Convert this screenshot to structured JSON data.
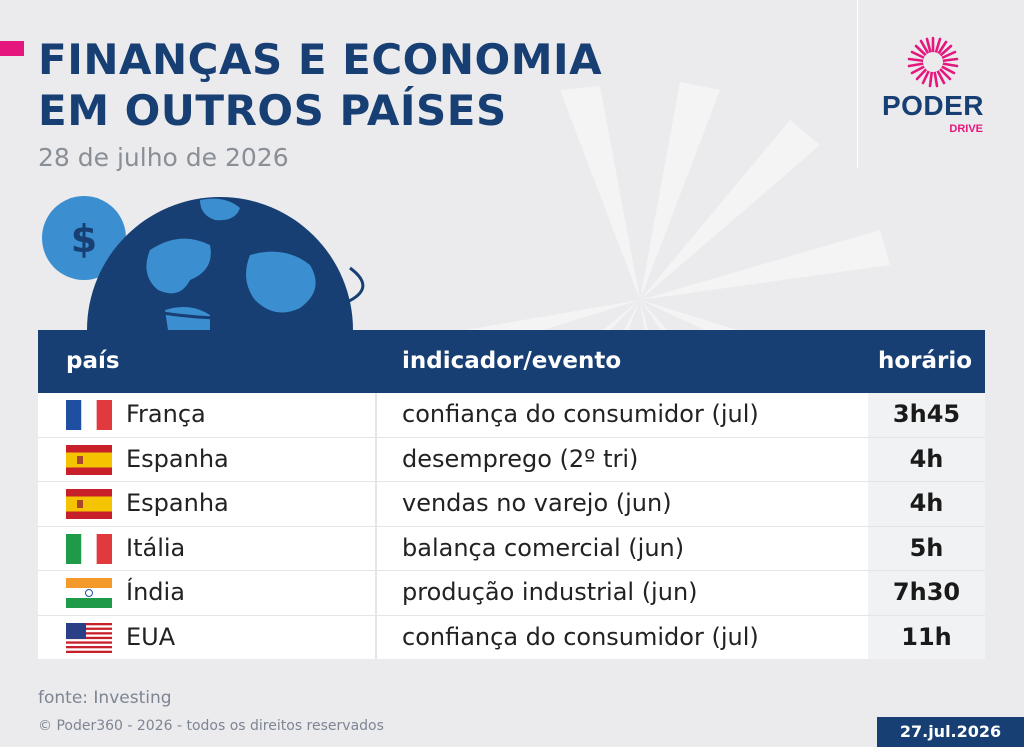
{
  "header": {
    "title_line1": "FINANÇAS E ECONOMIA",
    "title_line2": "EM OUTROS PAÍSES",
    "subtitle": "28 de julho de 2026"
  },
  "logo": {
    "name": "PODER",
    "sub": "DRIVE",
    "burst_icon": "radial-burst-icon"
  },
  "illustration": {
    "icons": [
      "dollar-coin-icon",
      "globe-icon"
    ],
    "dollar_symbol": "$"
  },
  "table": {
    "headers": {
      "country": "país",
      "indicator": "indicador/evento",
      "time": "horário"
    },
    "rows": [
      {
        "flag": "france-flag-icon",
        "country": "França",
        "indicator": "confiança do consumidor (jul)",
        "time": "3h45"
      },
      {
        "flag": "spain-flag-icon",
        "country": "Espanha",
        "indicator": "desemprego (2º tri)",
        "time": "4h"
      },
      {
        "flag": "spain-flag-icon",
        "country": "Espanha",
        "indicator": "vendas no varejo (jun)",
        "time": "4h"
      },
      {
        "flag": "italy-flag-icon",
        "country": "Itália",
        "indicator": "balança comercial (jun)",
        "time": "5h"
      },
      {
        "flag": "india-flag-icon",
        "country": "Índia",
        "indicator": "produção industrial (jun)",
        "time": "7h30"
      },
      {
        "flag": "usa-flag-icon",
        "country": "EUA",
        "indicator": "confiança do consumidor (jul)",
        "time": "11h"
      }
    ]
  },
  "footer": {
    "source": "fonte: Investing",
    "copyright": "© Poder360 - 2026 - todos os direitos reservados",
    "date": "27.jul.2026"
  },
  "colors": {
    "navy": "#173f73",
    "accent_pink": "#e5177e",
    "globe_blue": "#3b8fd0",
    "background": "#ebebed"
  }
}
